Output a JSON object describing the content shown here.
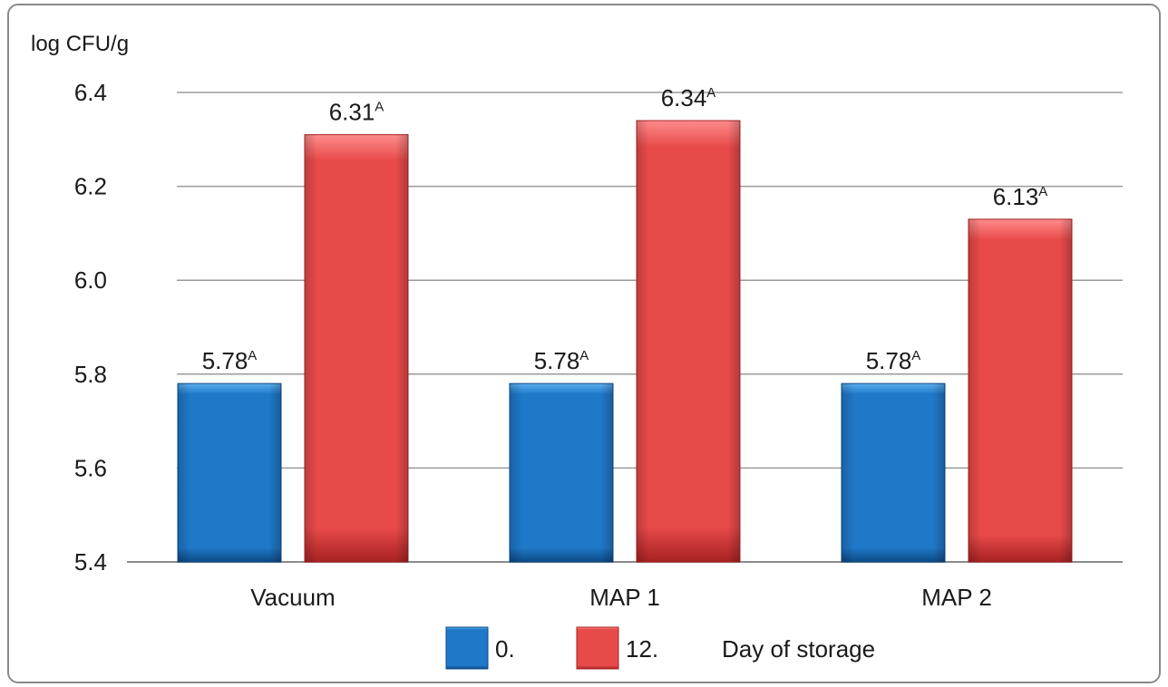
{
  "chart_data": {
    "type": "bar",
    "ylabel": "log CFU/g",
    "ylim": [
      5.4,
      6.4
    ],
    "ytick_step": 0.2,
    "yticks": [
      "5.4",
      "5.6",
      "5.8",
      "6.0",
      "6.2",
      "6.4"
    ],
    "grid": true,
    "categories": [
      "Vacuum",
      "MAP 1",
      "MAP 2"
    ],
    "series": [
      {
        "name": "0.",
        "values": [
          5.78,
          5.78,
          5.78
        ],
        "labels": [
          "5.78",
          "5.78",
          "5.78"
        ],
        "superscripts": [
          "A",
          "A",
          "A"
        ],
        "color": "#1f78c8",
        "color_light": "#5cb0f0",
        "color_dark": "#0d4a86"
      },
      {
        "name": "12.",
        "values": [
          6.31,
          6.34,
          6.13
        ],
        "labels": [
          "6.31",
          "6.34",
          "6.13"
        ],
        "superscripts": [
          "A",
          "A",
          "A"
        ],
        "color": "#e84a4a",
        "color_light": "#ff8c8c",
        "color_dark": "#a82222"
      }
    ],
    "legend_title": "Day of storage",
    "legend_placement": "bottom"
  }
}
